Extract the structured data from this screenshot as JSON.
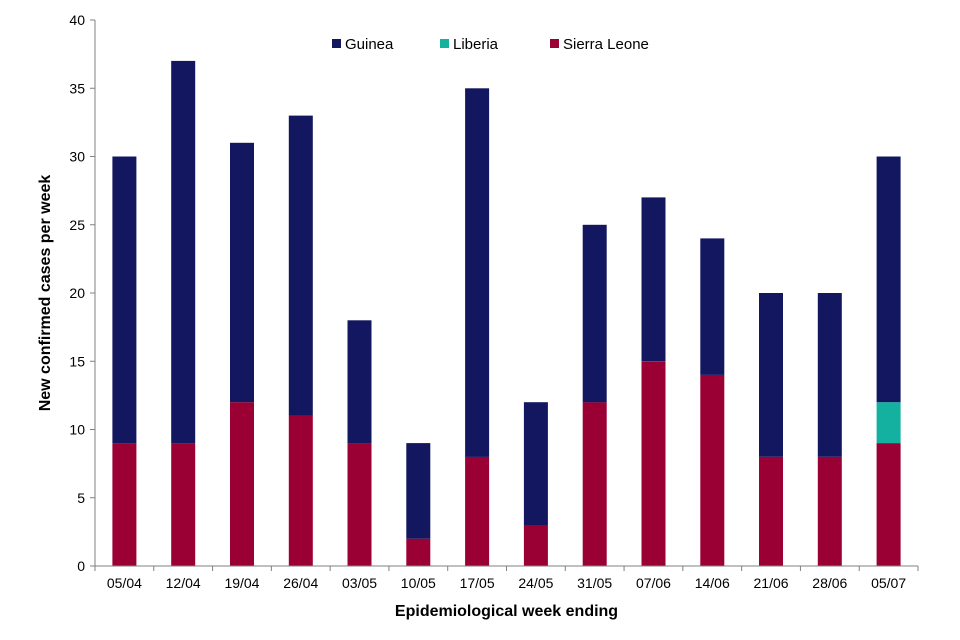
{
  "chart_data": {
    "type": "bar",
    "stacked": true,
    "title": "",
    "xlabel": "Epidemiological week ending",
    "ylabel": "New confirmed cases per week",
    "ylim": [
      0,
      40
    ],
    "yticks": [
      0,
      5,
      10,
      15,
      20,
      25,
      30,
      35,
      40
    ],
    "categories": [
      "05/04",
      "12/04",
      "19/04",
      "26/04",
      "03/05",
      "10/05",
      "17/05",
      "24/05",
      "31/05",
      "07/06",
      "14/06",
      "21/06",
      "28/06",
      "05/07"
    ],
    "series": [
      {
        "name": "Sierra Leone",
        "color": "#9b0034",
        "values": [
          9,
          9,
          12,
          11,
          9,
          2,
          8,
          3,
          12,
          15,
          14,
          8,
          8,
          9
        ]
      },
      {
        "name": "Liberia",
        "color": "#14b1a0",
        "values": [
          0,
          0,
          0,
          0,
          0,
          0,
          0,
          0,
          0,
          0,
          0,
          0,
          0,
          3
        ]
      },
      {
        "name": "Guinea",
        "color": "#131760",
        "values": [
          21,
          28,
          19,
          22,
          9,
          7,
          27,
          9,
          13,
          12,
          10,
          12,
          12,
          18
        ]
      }
    ],
    "legend": {
      "position": "top-center",
      "order": [
        "Guinea",
        "Liberia",
        "Sierra Leone"
      ]
    },
    "grid": false
  }
}
